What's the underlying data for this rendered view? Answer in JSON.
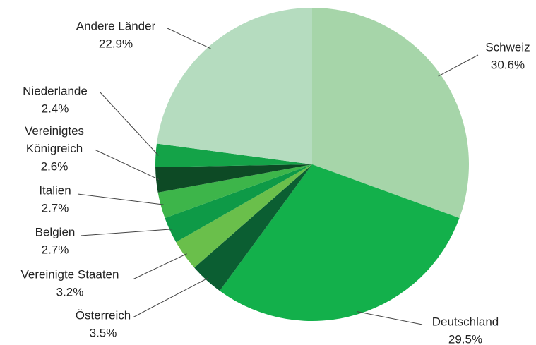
{
  "chart_data": {
    "type": "pie",
    "categories": [
      "Schweiz",
      "Deutschland",
      "Österreich",
      "Vereinigte Staaten",
      "Belgien",
      "Italien",
      "Vereinigtes Königreich",
      "Niederlande",
      "Andere Länder"
    ],
    "values": [
      30.6,
      29.5,
      3.5,
      3.2,
      2.7,
      2.7,
      2.6,
      2.4,
      22.9
    ],
    "value_labels": [
      "30.6%",
      "29.5%",
      "3.5%",
      "3.2%",
      "2.7%",
      "2.7%",
      "2.6%",
      "2.4%",
      "22.9%"
    ],
    "colors": [
      "#a6d5a9",
      "#13b04b",
      "#0b5e32",
      "#6abf4b",
      "#0e9a47",
      "#3db54a",
      "#0d4a25",
      "#14a348",
      "#b5dcbf"
    ]
  }
}
